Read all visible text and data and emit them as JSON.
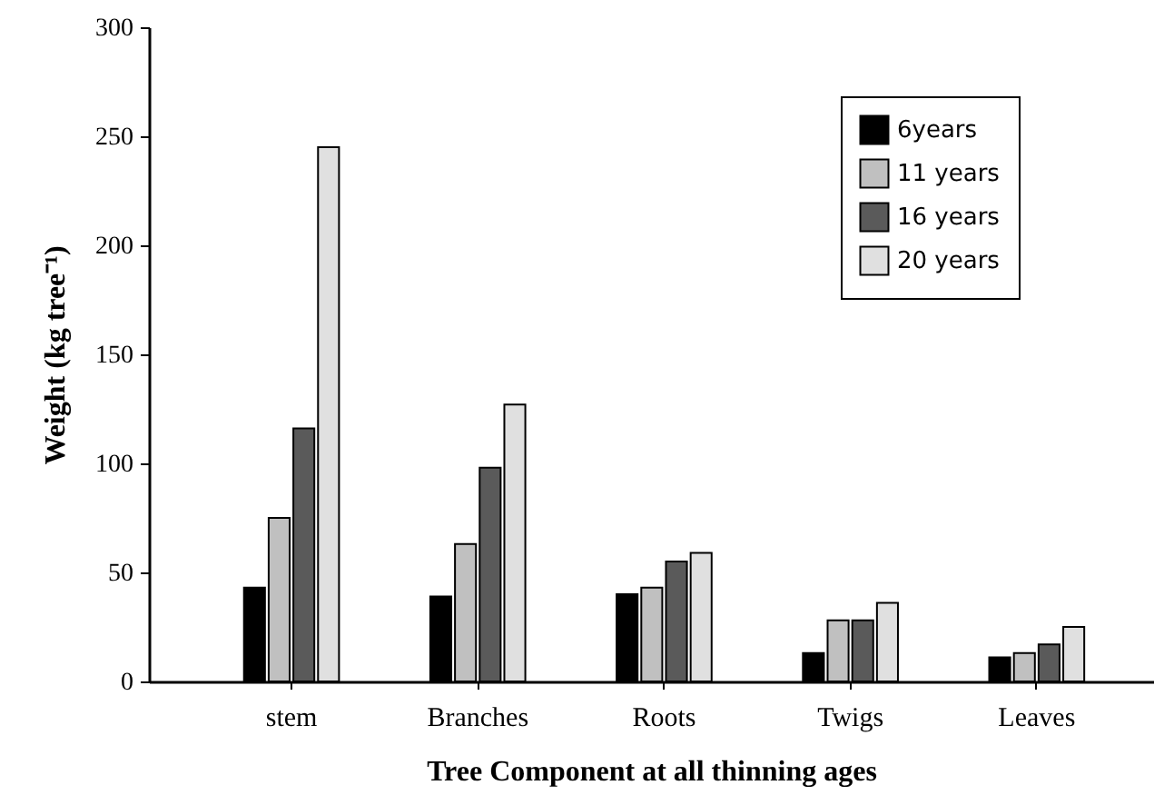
{
  "chart_data": {
    "type": "bar",
    "xlabel": "Tree Component at all thinning ages",
    "ylabel": "Weight (kg tree⁻¹)",
    "categories": [
      "stem",
      "Branches",
      "Roots",
      "Twigs",
      "Leaves"
    ],
    "series": [
      {
        "name": "6years",
        "color": "#000000",
        "values": [
          43,
          39,
          40,
          13,
          11
        ]
      },
      {
        "name": "11 years",
        "color": "#c0c0c0",
        "values": [
          75,
          63,
          43,
          28,
          13
        ]
      },
      {
        "name": "16 years",
        "color": "#5a5a5a",
        "values": [
          116,
          98,
          55,
          28,
          17
        ]
      },
      {
        "name": "20 years",
        "color": "#e0e0e0",
        "values": [
          245,
          127,
          59,
          36,
          25
        ]
      }
    ],
    "ylim": [
      0,
      300
    ],
    "yticks": [
      0,
      50,
      100,
      150,
      200,
      250,
      300
    ],
    "grid": false,
    "legend": "top right"
  }
}
